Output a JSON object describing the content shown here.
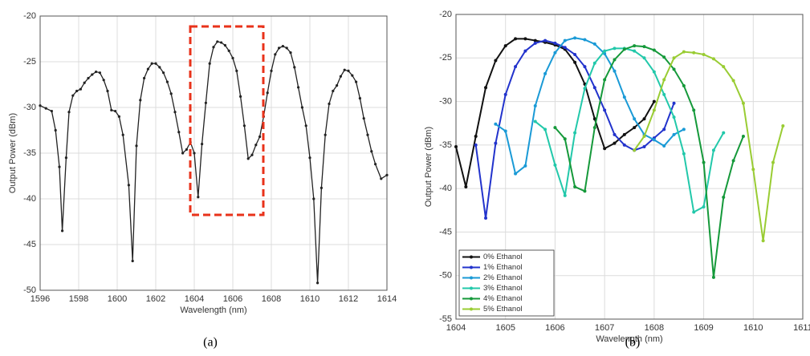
{
  "chart_data": [
    {
      "type": "line",
      "xlabel": "Wavelength (nm)",
      "ylabel": "Output Power (dBm)",
      "caption": "(a)",
      "xlim": [
        1596,
        1614
      ],
      "xticks": [
        1596,
        1598,
        1600,
        1602,
        1604,
        1606,
        1608,
        1610,
        1612,
        1614
      ],
      "ylim": [
        -50,
        -20
      ],
      "yticks": [
        -50,
        -45,
        -40,
        -35,
        -30,
        -25,
        -20
      ],
      "grid": true,
      "series": [
        {
          "name": null,
          "color": "#222222",
          "x": [
            1596,
            1596.3,
            1596.6,
            1596.8,
            1597.0,
            1597.15,
            1597.35,
            1597.5,
            1597.7,
            1597.9,
            1598.1,
            1598.3,
            1598.5,
            1598.7,
            1598.9,
            1599.1,
            1599.3,
            1599.5,
            1599.7,
            1599.9,
            1600.1,
            1600.3,
            1600.6,
            1600.8,
            1601.0,
            1601.2,
            1601.4,
            1601.6,
            1601.8,
            1602.0,
            1602.2,
            1602.4,
            1602.6,
            1602.8,
            1603.0,
            1603.2,
            1603.4,
            1603.6,
            1603.8,
            1604.0,
            1604.2,
            1604.4,
            1604.6,
            1604.8,
            1605.0,
            1605.2,
            1605.4,
            1605.6,
            1605.8,
            1606.0,
            1606.2,
            1606.4,
            1606.6,
            1606.8,
            1607.0,
            1607.2,
            1607.4,
            1607.6,
            1607.8,
            1608.0,
            1608.2,
            1608.4,
            1608.6,
            1608.8,
            1609.0,
            1609.2,
            1609.4,
            1609.6,
            1609.8,
            1610.0,
            1610.2,
            1610.4,
            1610.6,
            1610.8,
            1611.0,
            1611.2,
            1611.4,
            1611.6,
            1611.8,
            1612.0,
            1612.2,
            1612.4,
            1612.6,
            1612.8,
            1613.0,
            1613.2,
            1613.4,
            1613.7,
            1614.0
          ],
          "values": [
            -29.8,
            -30.1,
            -30.4,
            -32.5,
            -36.5,
            -43.5,
            -35.5,
            -30.5,
            -28.7,
            -28.2,
            -28.0,
            -27.3,
            -26.8,
            -26.4,
            -26.1,
            -26.2,
            -27.0,
            -28.2,
            -30.3,
            -30.4,
            -31.0,
            -33.0,
            -38.5,
            -46.8,
            -34.2,
            -29.2,
            -26.8,
            -25.8,
            -25.2,
            -25.2,
            -25.6,
            -26.2,
            -27.2,
            -28.5,
            -30.5,
            -32.7,
            -35.0,
            -34.6,
            -33.8,
            -35.0,
            -39.8,
            -34.0,
            -29.5,
            -25.2,
            -23.4,
            -22.8,
            -22.9,
            -23.2,
            -23.8,
            -24.6,
            -26.0,
            -28.8,
            -32.0,
            -35.6,
            -35.2,
            -34.1,
            -33.2,
            -31.0,
            -28.4,
            -26.0,
            -24.2,
            -23.5,
            -23.3,
            -23.5,
            -24.0,
            -25.6,
            -27.8,
            -30.0,
            -32.0,
            -35.5,
            -40.0,
            -49.2,
            -38.8,
            -33.0,
            -29.6,
            -28.2,
            -27.6,
            -26.6,
            -25.9,
            -26.0,
            -26.5,
            -27.2,
            -29.0,
            -31.2,
            -33.0,
            -34.8,
            -36.2,
            -37.8,
            -37.4
          ]
        }
      ]
    },
    {
      "type": "line",
      "xlabel": "Wavelength (nm)",
      "ylabel": "Output Power (dBm)",
      "caption": "(b)",
      "xlim": [
        1604,
        1611
      ],
      "xticks": [
        1604,
        1605,
        1606,
        1607,
        1608,
        1609,
        1610,
        1611
      ],
      "ylim": [
        -55,
        -20
      ],
      "yticks": [
        -55,
        -50,
        -45,
        -40,
        -35,
        -30,
        -25,
        -20
      ],
      "grid": true,
      "legend": "lower-left",
      "series": [
        {
          "name": "0% Ethanol",
          "color": "#111111",
          "x": [
            1604,
            1604.2,
            1604.4,
            1604.6,
            1604.8,
            1605.0,
            1605.2,
            1605.4,
            1605.6,
            1605.8,
            1606.0,
            1606.2,
            1606.4,
            1606.6,
            1606.8,
            1607.0,
            1607.2,
            1607.4,
            1607.6,
            1607.8,
            1608.0
          ],
          "values": [
            -35.2,
            -39.8,
            -34.0,
            -28.4,
            -25.3,
            -23.6,
            -22.8,
            -22.8,
            -23.0,
            -23.2,
            -23.5,
            -24.0,
            -25.5,
            -28.0,
            -32.0,
            -35.4,
            -34.8,
            -33.8,
            -33.0,
            -32.0,
            -30.0
          ]
        },
        {
          "name": "1% Ethanol",
          "color": "#2233cc",
          "x": [
            1604.4,
            1604.6,
            1604.8,
            1605.0,
            1605.2,
            1605.4,
            1605.6,
            1605.8,
            1606.0,
            1606.2,
            1606.4,
            1606.6,
            1606.8,
            1607.0,
            1607.2,
            1607.4,
            1607.6,
            1607.8,
            1608.0,
            1608.2,
            1608.4
          ],
          "values": [
            -35.0,
            -43.4,
            -34.8,
            -29.2,
            -26.0,
            -24.2,
            -23.3,
            -23.0,
            -23.3,
            -23.8,
            -24.6,
            -26.0,
            -28.4,
            -31.0,
            -33.8,
            -35.0,
            -35.6,
            -35.2,
            -34.2,
            -33.2,
            -30.2
          ]
        },
        {
          "name": "2% Ethanol",
          "color": "#1a9ad6",
          "x": [
            1604.8,
            1605.0,
            1605.2,
            1605.4,
            1605.6,
            1605.8,
            1606.0,
            1606.2,
            1606.4,
            1606.6,
            1606.8,
            1607.0,
            1607.2,
            1607.4,
            1607.6,
            1607.8,
            1608.0,
            1608.2,
            1608.4,
            1608.6
          ],
          "values": [
            -32.6,
            -33.4,
            -38.3,
            -37.4,
            -30.5,
            -26.8,
            -24.4,
            -23.0,
            -22.7,
            -22.9,
            -23.4,
            -24.5,
            -26.5,
            -29.5,
            -32.0,
            -33.8,
            -34.4,
            -35.1,
            -33.8,
            -33.2
          ]
        },
        {
          "name": "3% Ethanol",
          "color": "#22c8aa",
          "x": [
            1605.6,
            1605.8,
            1606.0,
            1606.2,
            1606.4,
            1606.6,
            1606.8,
            1607.0,
            1607.2,
            1607.4,
            1607.6,
            1607.8,
            1608.0,
            1608.2,
            1608.4,
            1608.6,
            1608.8,
            1609.0,
            1609.2,
            1609.4
          ],
          "values": [
            -32.3,
            -33.2,
            -37.3,
            -40.8,
            -33.6,
            -28.5,
            -25.6,
            -24.2,
            -23.9,
            -23.9,
            -24.2,
            -25.0,
            -26.6,
            -29.2,
            -31.8,
            -36.0,
            -42.7,
            -42.1,
            -35.6,
            -33.6
          ]
        },
        {
          "name": "4% Ethanol",
          "color": "#15993a",
          "x": [
            1606.0,
            1606.2,
            1606.4,
            1606.6,
            1606.8,
            1607.0,
            1607.2,
            1607.4,
            1607.6,
            1607.8,
            1608.0,
            1608.2,
            1608.4,
            1608.6,
            1608.8,
            1609.0,
            1609.2,
            1609.4,
            1609.6,
            1609.8
          ],
          "values": [
            -33.0,
            -34.3,
            -39.8,
            -40.3,
            -33.0,
            -27.5,
            -25.2,
            -24.0,
            -23.6,
            -23.7,
            -24.1,
            -24.9,
            -26.3,
            -28.2,
            -31.0,
            -37.0,
            -50.2,
            -41.0,
            -36.8,
            -34.0
          ]
        },
        {
          "name": "5% Ethanol",
          "color": "#99cc33",
          "x": [
            1607.6,
            1607.8,
            1608.0,
            1608.2,
            1608.4,
            1608.6,
            1608.8,
            1609.0,
            1609.2,
            1609.4,
            1609.6,
            1609.8,
            1610.0,
            1610.2,
            1610.4,
            1610.6
          ],
          "values": [
            -35.6,
            -34.0,
            -31.0,
            -27.5,
            -25.0,
            -24.3,
            -24.4,
            -24.6,
            -25.1,
            -26.0,
            -27.6,
            -30.2,
            -37.8,
            -46.0,
            -37.0,
            -32.8
          ]
        }
      ]
    }
  ]
}
